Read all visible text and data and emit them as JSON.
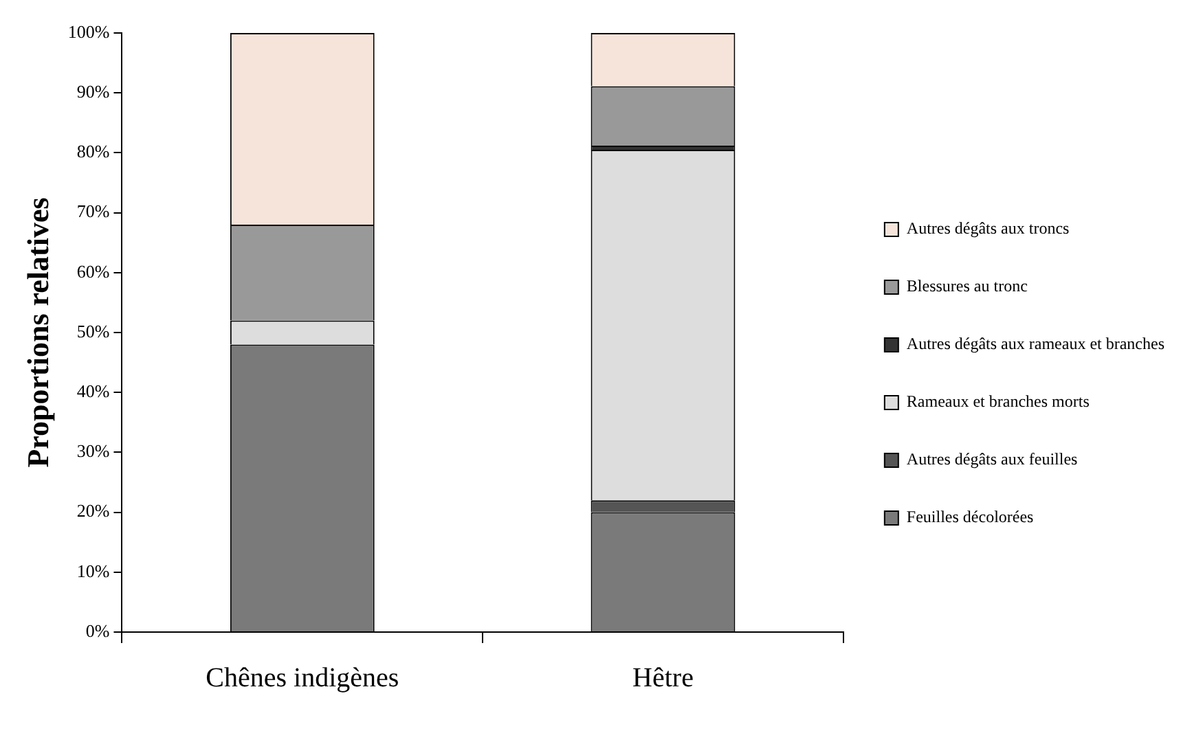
{
  "chart_data": {
    "type": "bar",
    "stacked": true,
    "ylabel": "Proportions relatives",
    "categories": [
      "Chênes indigènes",
      "Hêtre"
    ],
    "series": [
      {
        "name": "Feuilles décolorées",
        "color": "#7a7a7a",
        "values": [
          48,
          20
        ]
      },
      {
        "name": "Autres dégâts aux feuilles",
        "color": "#555555",
        "values": [
          0,
          2
        ]
      },
      {
        "name": "Rameaux et branches morts",
        "color": "#dddddd",
        "values": [
          4,
          58.5
        ]
      },
      {
        "name": "Autres dégâts aux rameaux et branches",
        "color": "#333333",
        "values": [
          0,
          0.7
        ]
      },
      {
        "name": "Blessures au tronc",
        "color": "#999999",
        "values": [
          16,
          9.9
        ]
      },
      {
        "name": "Autres dégâts aux troncs",
        "color": "#f6e4da",
        "values": [
          32,
          8.9
        ]
      }
    ],
    "ylim": [
      0,
      100
    ],
    "yticks": [
      {
        "value": 0,
        "label": "0%"
      },
      {
        "value": 10,
        "label": "10%"
      },
      {
        "value": 20,
        "label": "20%"
      },
      {
        "value": 30,
        "label": "30%"
      },
      {
        "value": 40,
        "label": "40%"
      },
      {
        "value": 50,
        "label": "50%"
      },
      {
        "value": 60,
        "label": "60%"
      },
      {
        "value": 70,
        "label": "70%"
      },
      {
        "value": 80,
        "label": "80%"
      },
      {
        "value": 90,
        "label": "90%"
      },
      {
        "value": 100,
        "label": "100%"
      }
    ],
    "grid": false,
    "legend": "right"
  }
}
